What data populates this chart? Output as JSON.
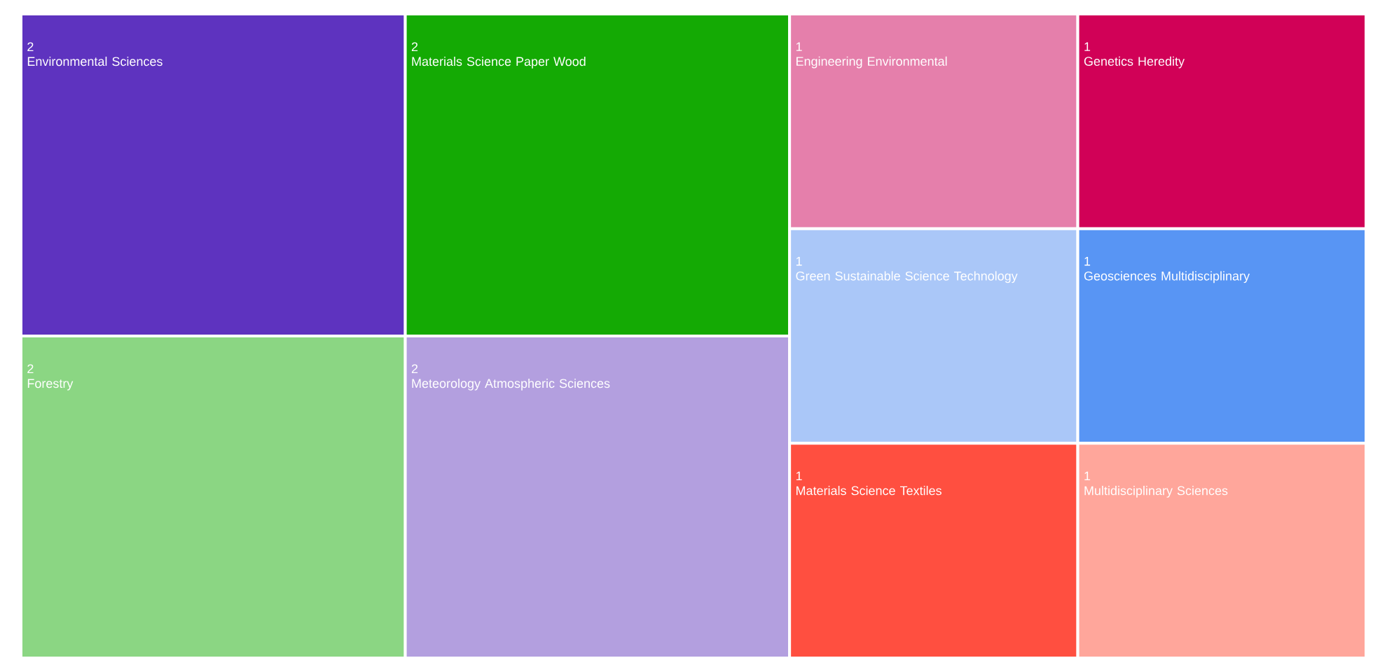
{
  "chart_data": {
    "type": "other",
    "data_labels": true,
    "categories": [
      "Environmental Sciences",
      "Forestry",
      "Materials Science Paper Wood",
      "Meteorology Atmospheric Sciences",
      "Engineering Environmental",
      "Genetics Heredity",
      "Green Sustainable Science Technology",
      "Materials Science Textiles",
      "Geosciences Multidisciplinary",
      "Multidisciplinary Sciences"
    ],
    "values": [
      2,
      2,
      2,
      2,
      1,
      1,
      1,
      1,
      1,
      1
    ],
    "colors": [
      "#5e33bf",
      "#8bd683",
      "#14aa04",
      "#b39fdf",
      "#e57fab",
      "#d10157",
      "#aac7f8",
      "#ff4f40",
      "#5895f4",
      "#ffa69b"
    ]
  }
}
